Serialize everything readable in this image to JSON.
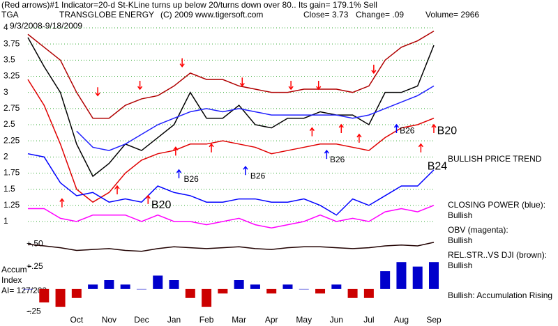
{
  "chart_data": {
    "type": "line",
    "title": "(Red arrows)#1 Indicator=20-d St-KLine turns up below 20/turns down over 80.. Its gain= 179.1% Sell",
    "header": [
      "TGA",
      "TRANSGLOBE ENERGY",
      "(C) 2009 www.tigersoft.com",
      "Close= 3.73",
      "Change= .09",
      "Volume= 2966"
    ],
    "date_range": "9/3/2008-9/18/2009",
    "trend": "BULLISH PRICE TREND",
    "accum_labels": [
      "Accum",
      "Index",
      "AI= 127/200"
    ],
    "categories": [
      null,
      null,
      null,
      "Oct",
      null,
      "Nov",
      null,
      "Dec",
      null,
      "Jan",
      null,
      "Feb",
      null,
      "Mar",
      null,
      "Apr",
      null,
      "May",
      null,
      "Jun",
      null,
      "Jul",
      null,
      "Aug",
      null,
      "Sep"
    ],
    "ylim": [
      1,
      4
    ],
    "yticks": [
      1,
      1.25,
      1.5,
      1.75,
      2,
      2.25,
      2.5,
      2.75,
      3,
      3.25,
      3.5,
      3.75,
      4
    ],
    "y2lim": [
      -0.35,
      0.55
    ],
    "y2ticks": [
      {
        "value": 0.5,
        "label": "+.50"
      },
      {
        "value": 0.25,
        "label": "+.25"
      },
      {
        "value": -0.25,
        "label": "-.25"
      }
    ],
    "grid": true,
    "series": [
      {
        "color": "#000000",
        "values": [
          3.85,
          3.4,
          3.0,
          2.2,
          1.7,
          1.9,
          2.2,
          2.1,
          2.3,
          2.5,
          3.0,
          2.6,
          2.6,
          2.8,
          2.5,
          2.45,
          2.6,
          2.6,
          2.7,
          2.65,
          2.65,
          2.5,
          3.0,
          3.0,
          3.1,
          3.73
        ]
      },
      {
        "color": "#b00000",
        "values": [
          3.9,
          3.7,
          3.5,
          3.0,
          2.6,
          2.6,
          2.8,
          2.9,
          2.95,
          3.1,
          3.3,
          3.2,
          3.2,
          3.1,
          3.05,
          3.0,
          3.0,
          3.05,
          3.05,
          3.05,
          3.0,
          3.1,
          3.5,
          3.7,
          3.8,
          3.95
        ]
      },
      {
        "color": "#e00000",
        "values": [
          3.2,
          2.8,
          2.2,
          1.5,
          1.3,
          1.45,
          1.75,
          1.95,
          2.05,
          2.1,
          2.2,
          2.2,
          2.25,
          2.2,
          2.15,
          2.05,
          2.1,
          2.15,
          2.2,
          2.2,
          2.15,
          2.1,
          2.3,
          2.45,
          2.5,
          2.6
        ]
      },
      {
        "color": "#2020ff",
        "values": [
          null,
          null,
          null,
          2.4,
          2.15,
          2.1,
          2.2,
          2.35,
          2.5,
          2.6,
          2.7,
          2.75,
          2.7,
          2.75,
          2.7,
          2.65,
          2.65,
          2.65,
          2.65,
          2.65,
          2.6,
          2.65,
          2.75,
          2.85,
          2.95,
          3.1
        ]
      },
      {
        "name": "CLOSING POWER (blue):",
        "status": "Bullish",
        "color": "#0000ff",
        "values": [
          2.05,
          2.0,
          1.6,
          1.4,
          1.45,
          1.3,
          1.35,
          1.3,
          1.55,
          1.45,
          1.4,
          1.3,
          1.3,
          1.35,
          1.35,
          1.3,
          1.3,
          1.35,
          1.25,
          1.1,
          1.35,
          1.25,
          1.4,
          1.55,
          1.55,
          1.8
        ]
      },
      {
        "name": "OBV (magenta):",
        "status": "Bullish",
        "color": "#ff00ff",
        "values": [
          1.2,
          1.2,
          1.05,
          1.0,
          1.1,
          1.1,
          1.1,
          1.0,
          1.1,
          1.0,
          1.0,
          0.95,
          1.0,
          1.05,
          0.95,
          0.9,
          0.95,
          1.0,
          1.1,
          1.0,
          1.05,
          1.0,
          1.15,
          1.2,
          1.15,
          1.25
        ]
      },
      {
        "name": "REL.STR..VS DJI (brown):",
        "status": "Bullish",
        "color": "#200000",
        "axis": "y2",
        "values": [
          0.5,
          0.48,
          0.46,
          0.43,
          0.44,
          0.45,
          0.43,
          0.42,
          0.45,
          0.47,
          0.46,
          0.45,
          0.46,
          0.47,
          0.45,
          0.44,
          0.46,
          0.47,
          0.47,
          0.46,
          0.45,
          0.46,
          0.48,
          0.49,
          0.48,
          0.52
        ]
      },
      {
        "status": "Bullish: Accumulation Rising",
        "type": "bar",
        "color": "#0000cc",
        "negative_color": "#cc0000",
        "axis": "y2",
        "values": [
          0,
          -0.15,
          -0.2,
          -0.1,
          0.05,
          0.1,
          0.05,
          0.0,
          0.15,
          0.1,
          -0.1,
          -0.2,
          -0.05,
          0.1,
          0.05,
          -0.05,
          0.05,
          0.0,
          -0.05,
          0.05,
          -0.1,
          -0.1,
          0.2,
          0.3,
          0.25,
          0.3
        ]
      }
    ],
    "annotations": [
      {
        "text": "B26",
        "x": 9.6,
        "value": 1.65
      },
      {
        "text": "B26",
        "x": 13.7,
        "value": 1.7
      },
      {
        "text": "B26",
        "x": 18.6,
        "value": 1.95
      },
      {
        "text": "B26",
        "x": 22.9,
        "value": 2.4
      },
      {
        "text": "B20",
        "x": 7.6,
        "value": 1.25,
        "size": "big"
      },
      {
        "text": "B20",
        "x": 25.2,
        "value": 2.4,
        "size": "big"
      },
      {
        "text": "B24",
        "x": 24.6,
        "value": 1.85,
        "size": "big"
      }
    ],
    "signals": [
      {
        "x": 4.3,
        "value": 2.95,
        "dir": "down",
        "color": "#ff0000"
      },
      {
        "x": 6.9,
        "value": 3.05,
        "dir": "down",
        "color": "#ff0000"
      },
      {
        "x": 9.5,
        "value": 3.4,
        "dir": "down",
        "color": "#ff0000"
      },
      {
        "x": 13.2,
        "value": 3.1,
        "dir": "down",
        "color": "#ff0000"
      },
      {
        "x": 16.2,
        "value": 3.05,
        "dir": "down",
        "color": "#ff0000"
      },
      {
        "x": 17.9,
        "value": 3.05,
        "dir": "down",
        "color": "#ff0000"
      },
      {
        "x": 21.3,
        "value": 3.3,
        "dir": "down",
        "color": "#ff0000"
      },
      {
        "x": 2.1,
        "value": 1.35,
        "dir": "up",
        "color": "#ff0000"
      },
      {
        "x": 5.5,
        "value": 1.55,
        "dir": "up",
        "color": "#ff0000"
      },
      {
        "x": 7.4,
        "value": 1.4,
        "dir": "up",
        "color": "#ff0000"
      },
      {
        "x": 9.1,
        "value": 2.15,
        "dir": "up",
        "color": "#ff0000"
      },
      {
        "x": 11.3,
        "value": 2.2,
        "dir": "up",
        "color": "#ff0000"
      },
      {
        "x": 17.5,
        "value": 2.45,
        "dir": "up",
        "color": "#ff0000"
      },
      {
        "x": 19.3,
        "value": 2.5,
        "dir": "up",
        "color": "#ff0000"
      },
      {
        "x": 20.4,
        "value": 2.35,
        "dir": "up",
        "color": "#ff0000"
      },
      {
        "x": 24.2,
        "value": 2.2,
        "dir": "up",
        "color": "#ff0000"
      },
      {
        "x": 25,
        "value": 2.5,
        "dir": "up",
        "color": "#ff0000"
      },
      {
        "x": 9.3,
        "value": 1.8,
        "dir": "up",
        "color": "#0000ff"
      },
      {
        "x": 13.4,
        "value": 1.85,
        "dir": "up",
        "color": "#0000ff"
      },
      {
        "x": 18.4,
        "value": 2.1,
        "dir": "up",
        "color": "#0000ff"
      },
      {
        "x": 22.7,
        "value": 2.5,
        "dir": "up",
        "color": "#0000ff"
      }
    ]
  }
}
